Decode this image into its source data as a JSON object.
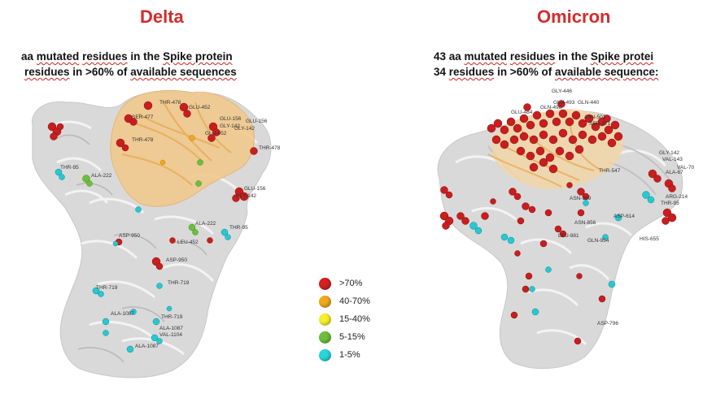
{
  "delta": {
    "title": "Delta",
    "line1_pre": "aa ",
    "line1_u1": "mutated",
    "line1_mid": " ",
    "line1_u2": "residues",
    "line1_mid2": " in the ",
    "line1_u3": "Spike protein",
    "line2_u1": "residues",
    "line2_mid": " in >60% of ",
    "line2_u2": "available sequences"
  },
  "omicron": {
    "title": "Omicron",
    "line1_pre": "43 aa ",
    "line1_u1": "mutated",
    "line1_mid": " ",
    "line1_u2": "residues",
    "line1_mid2": " in the ",
    "line1_u3": "Spike protei",
    "line2_pre": "34 ",
    "line2_u1": "residues",
    "line2_mid": " in >60% of ",
    "line2_u2": "available sequence:"
  },
  "legend": [
    {
      "label": ">70%",
      "color": "#d61f1f"
    },
    {
      "label": "40-70%",
      "color": "#f0a81e"
    },
    {
      "label": "15-40%",
      "color": "#f7ee2a"
    },
    {
      "label": "5-15%",
      "color": "#6cbf3c"
    },
    {
      "label": "1-5%",
      "color": "#28d6dc"
    }
  ],
  "delta_labels": [
    "THR-478",
    "GLU-452",
    "GLU-156",
    "GLY-142",
    "GLU-452",
    "GLU-156",
    "GLY-142",
    "THR-478",
    "THR-95",
    "ALA-222",
    "THR-478",
    "GLU-156",
    "GLY-142",
    "ALA-222",
    "THR-95",
    "ASP-950",
    "ASP-950",
    "LEU-452",
    "THR-719",
    "THR-719",
    "ALA-1087",
    "THR-719",
    "ALA-1087",
    "VAL-1104",
    "ALA-1087",
    "SER-477"
  ],
  "omicron_labels": [
    "GLY-446",
    "GLN-493",
    "GLN-440",
    "GLU-484",
    "ASN-501",
    "GLN-498",
    "SER-371",
    "THR-547",
    "GLY-142",
    "VAL-143",
    "ALA-67",
    "VAL-70",
    "ARG-214",
    "ASN-969",
    "ASN-856",
    "LEU-981",
    "ASP-614",
    "GLN-954",
    "HIS-655",
    "ASP-796",
    "THR-95"
  ]
}
